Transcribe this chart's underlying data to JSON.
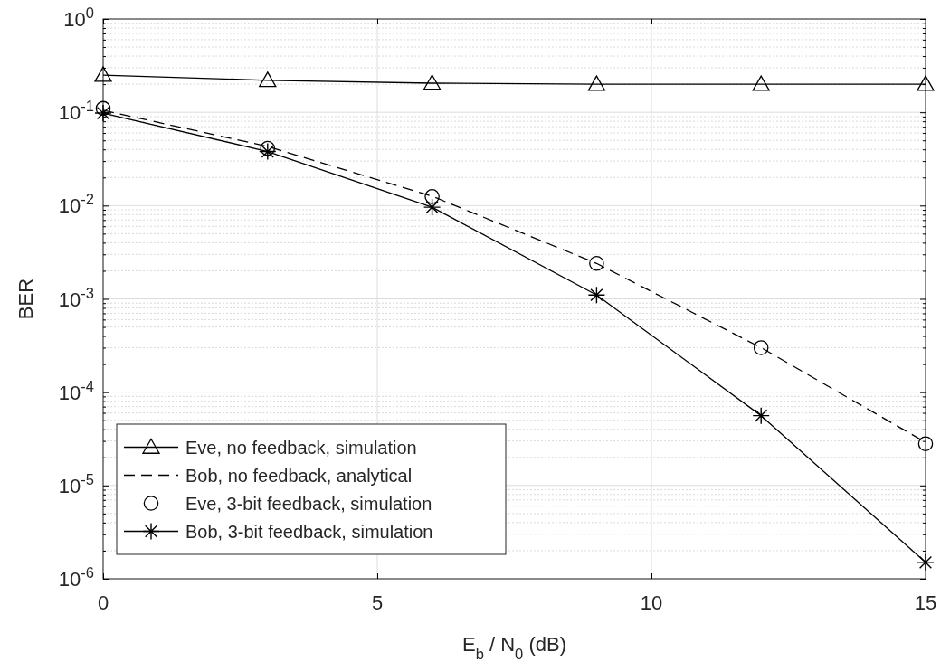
{
  "chart_data": {
    "type": "line",
    "xlabel": "E$_{b}$ / N$_{0}$ (dB)",
    "ylabel": "BER",
    "log": "y",
    "grid": true,
    "legend": "bottom left",
    "xlim": [
      0,
      15
    ],
    "xticks": [
      0,
      5,
      10,
      15
    ],
    "ylim": [
      1e-06,
      1
    ],
    "yticks": [
      {
        "value": 1e-06,
        "label": "10$^{-6}$"
      },
      {
        "value": 1e-05,
        "label": "10$^{-5}$"
      },
      {
        "value": 0.0001,
        "label": "10$^{-4}$"
      },
      {
        "value": 0.001,
        "label": "10$^{-3}$"
      },
      {
        "value": 0.01,
        "label": "10$^{-2}$"
      },
      {
        "value": 0.1,
        "label": "10$^{-1}$"
      },
      {
        "value": 1,
        "label": "10$^{0}$"
      }
    ],
    "series": [
      {
        "name": "Eve, no feedback, simulation",
        "color": "#000000",
        "marker": "triangle",
        "line_style": "solid",
        "x": [
          0,
          3,
          6,
          9,
          12,
          15
        ],
        "values": [
          0.25,
          0.22,
          0.205,
          0.2,
          0.2,
          0.2
        ]
      },
      {
        "name": "Bob, no feedback, analytical",
        "color": "#000000",
        "marker": "none",
        "line_style": "dashed",
        "x": [
          0,
          3,
          6,
          9,
          12,
          15
        ],
        "values": [
          0.105,
          0.043,
          0.0126,
          0.0024,
          0.0003,
          2.9e-05
        ]
      },
      {
        "name": "Eve, 3-bit feedback, simulation",
        "type": "scatter",
        "color": "#000000",
        "marker": "circle",
        "x": [
          0,
          3,
          6,
          9,
          12,
          15
        ],
        "values": [
          0.11,
          0.041,
          0.0125,
          0.0024,
          0.0003,
          2.8e-05
        ]
      },
      {
        "name": "Bob, 3-bit feedback, simulation",
        "color": "#000000",
        "marker": "cross",
        "line_style": "solid",
        "x": [
          0,
          3,
          6,
          9,
          12,
          15
        ],
        "values": [
          0.098,
          0.038,
          0.0096,
          0.0011,
          5.6e-05,
          1.5e-06
        ]
      }
    ]
  }
}
